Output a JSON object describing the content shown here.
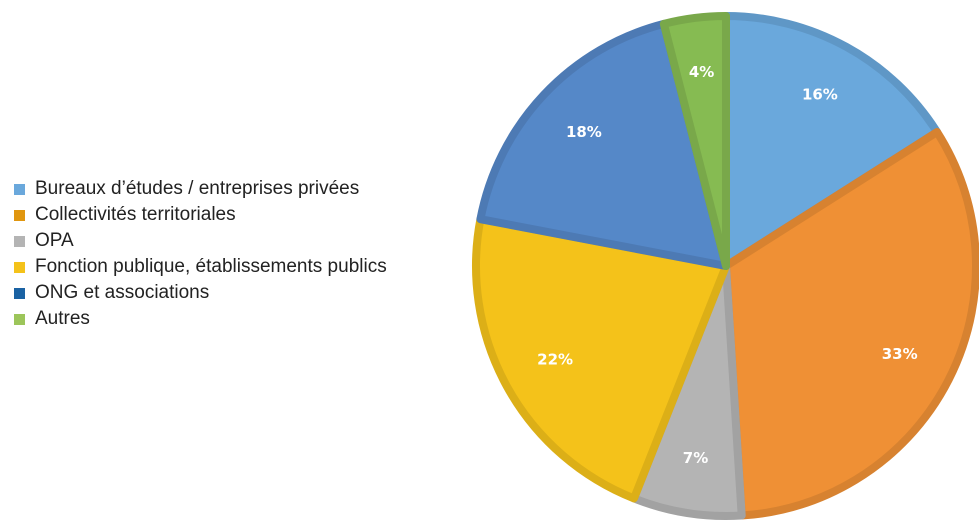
{
  "chart_data": {
    "type": "pie",
    "title": "",
    "legend_position": "left",
    "start_angle_deg": 0,
    "direction": "clockwise",
    "slices": [
      {
        "label": "Bureaux d’études / entreprises privées",
        "value": 16,
        "value_label": "16%",
        "color": "#6aa8dc"
      },
      {
        "label": "Collectivités territoriales",
        "value": 33,
        "value_label": "33%",
        "color": "#ef9035"
      },
      {
        "label": "OPA",
        "value": 7,
        "value_label": "7%",
        "color": "#b4b4b4"
      },
      {
        "label": "Fonction publique, établissements publics",
        "value": 22,
        "value_label": "22%",
        "color": "#f4c21a"
      },
      {
        "label": "ONG et associations",
        "value": 18,
        "value_label": "18%",
        "color": "#5588c8"
      },
      {
        "label": "Autres",
        "value": 4,
        "value_label": "4%",
        "color": "#86bb52"
      }
    ],
    "legend_swatch_colors": [
      "#6aa8dc",
      "#e0960f",
      "#b4b4b4",
      "#f4c21a",
      "#1a62a3",
      "#9cc55a"
    ]
  }
}
